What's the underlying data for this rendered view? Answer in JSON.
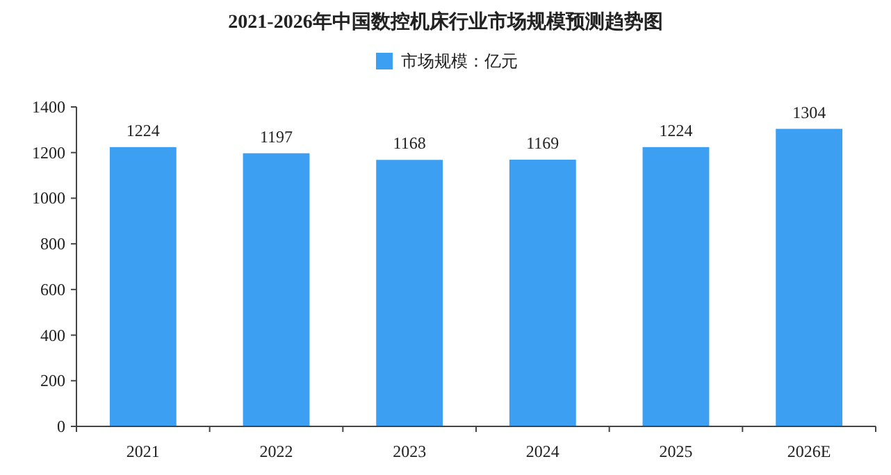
{
  "chart_data": {
    "type": "bar",
    "title": "2021-2026年中国数控机床行业市场规模预测趋势图",
    "categories": [
      "2021",
      "2022",
      "2023",
      "2024",
      "2025",
      "2026E"
    ],
    "series": [
      {
        "name": "市场规模：亿元",
        "color": "#3d9ff2",
        "values": [
          1224,
          1197,
          1168,
          1169,
          1224,
          1304
        ]
      }
    ],
    "ylim": [
      0,
      1400
    ],
    "yticks": [
      0,
      200,
      400,
      600,
      800,
      1000,
      1200,
      1400
    ],
    "grid": false,
    "legend": "top",
    "data_labels": true
  }
}
